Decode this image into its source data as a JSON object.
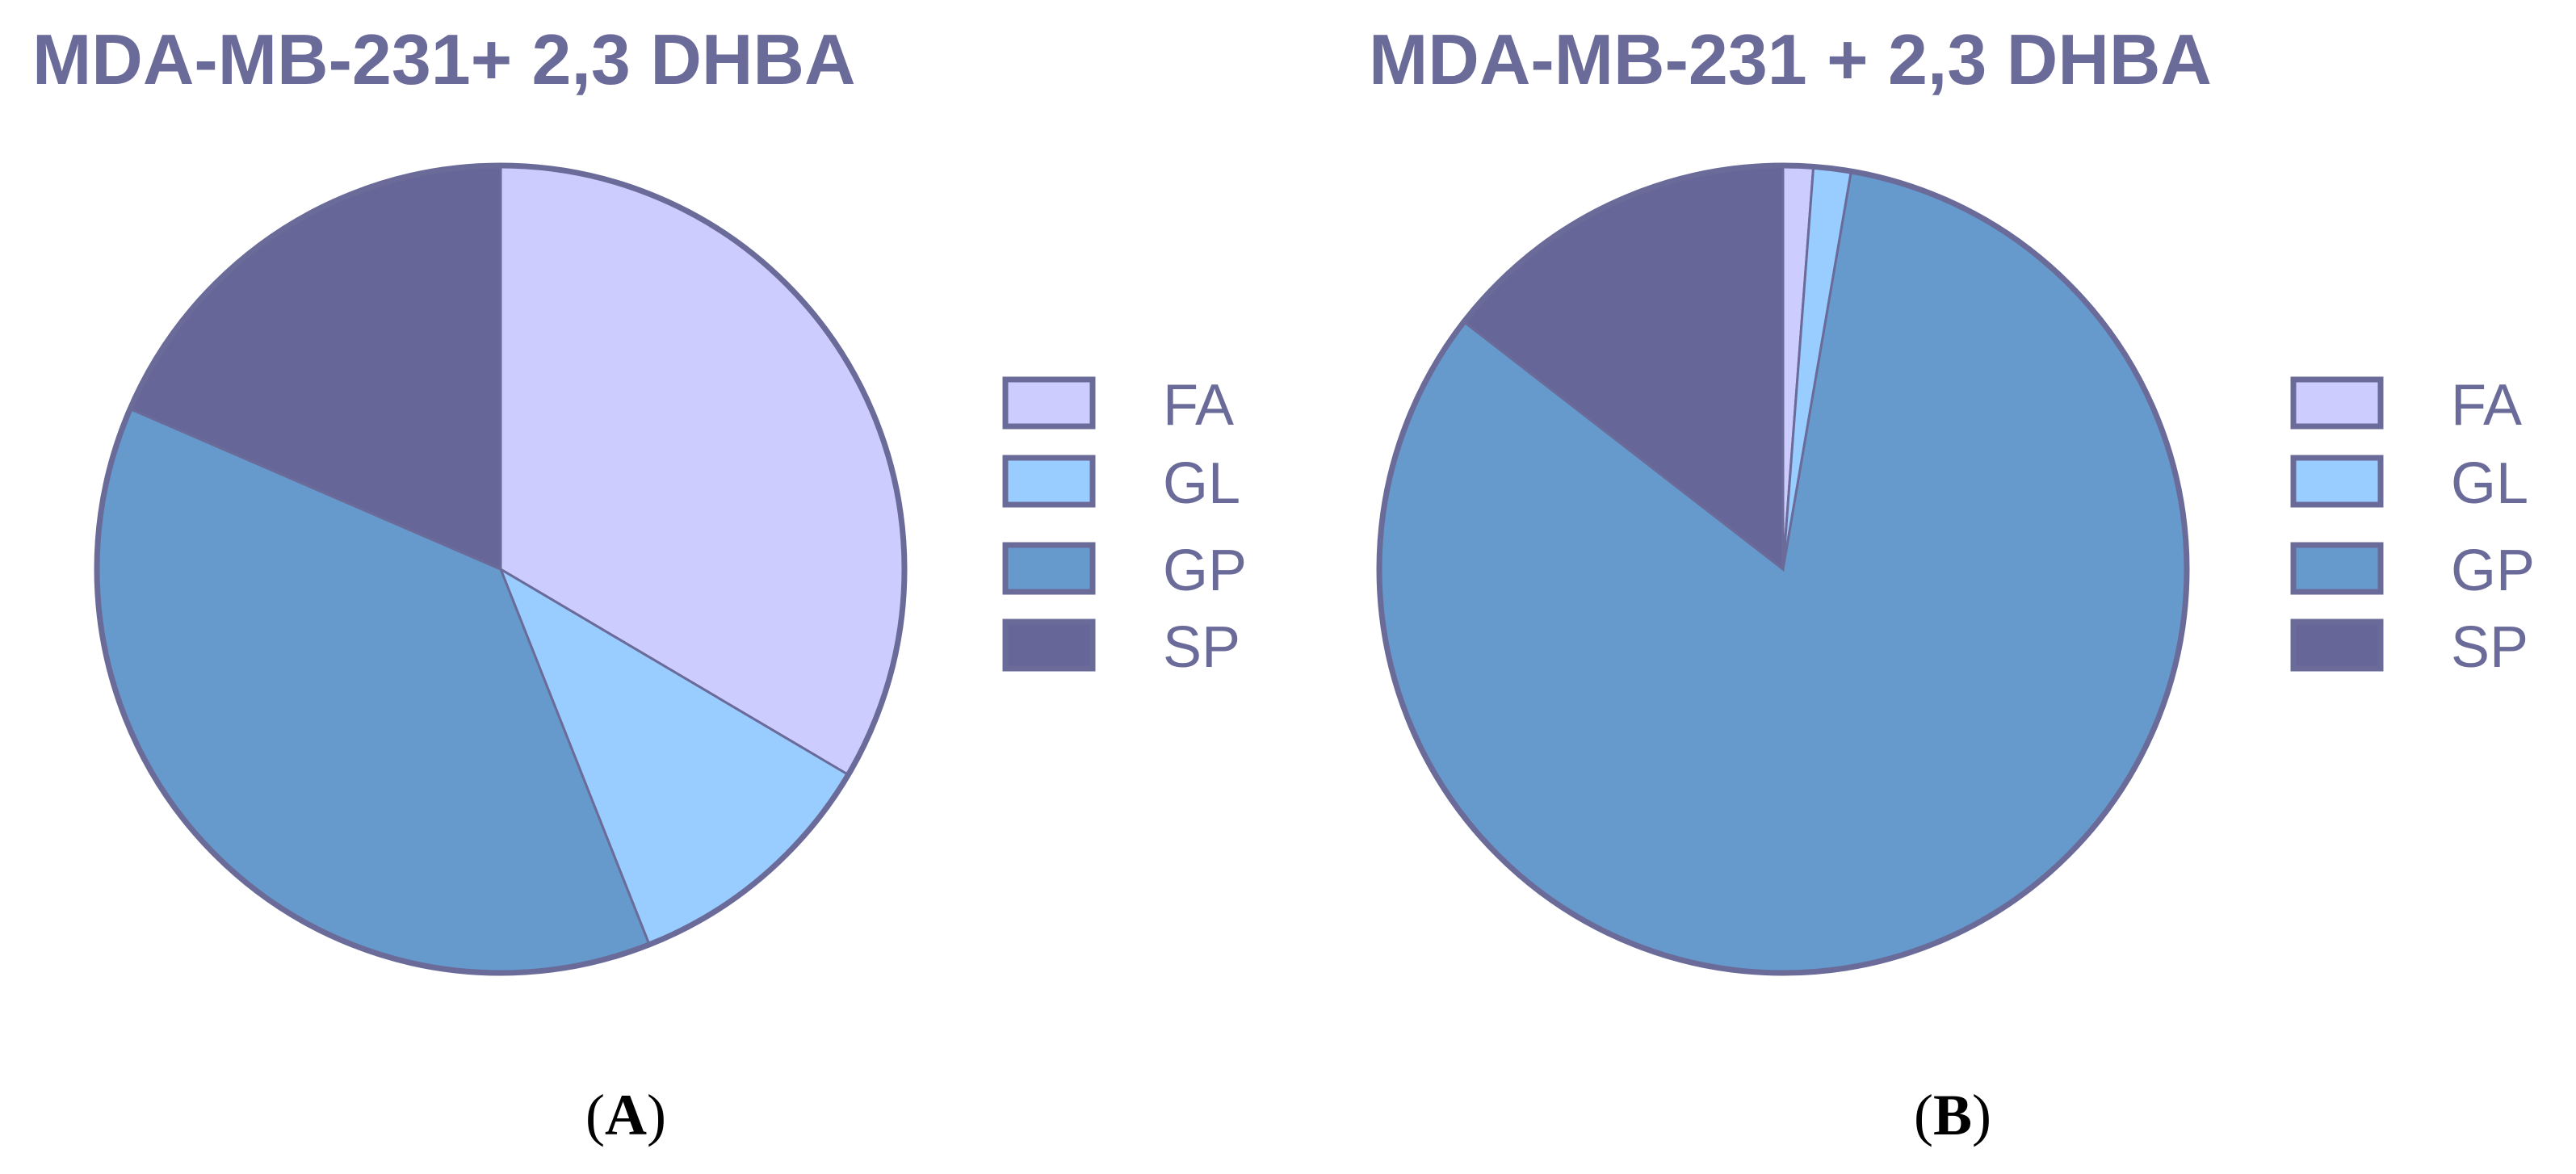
{
  "colors": {
    "FA": "#ccccff",
    "GL": "#99ccff",
    "GP": "#6699cc",
    "SP": "#666699",
    "outline": "#6b6b9a"
  },
  "chart_data": [
    {
      "type": "pie",
      "title": "MDA-MB-231+ 2,3 DHBA",
      "panel_label": "A",
      "categories": [
        "FA",
        "GL",
        "GP",
        "SP"
      ],
      "values": [
        33.5,
        10.5,
        37.5,
        18.5
      ],
      "legend": [
        "FA",
        "GL",
        "GP",
        "SP"
      ],
      "legend_position": "right"
    },
    {
      "type": "pie",
      "title": "MDA-MB-231 + 2,3 DHBA",
      "panel_label": "B",
      "categories": [
        "FA",
        "GL",
        "GP",
        "SP"
      ],
      "values": [
        1.2,
        1.5,
        82.8,
        14.5
      ],
      "legend": [
        "FA",
        "GL",
        "GP",
        "SP"
      ],
      "legend_position": "right"
    }
  ]
}
